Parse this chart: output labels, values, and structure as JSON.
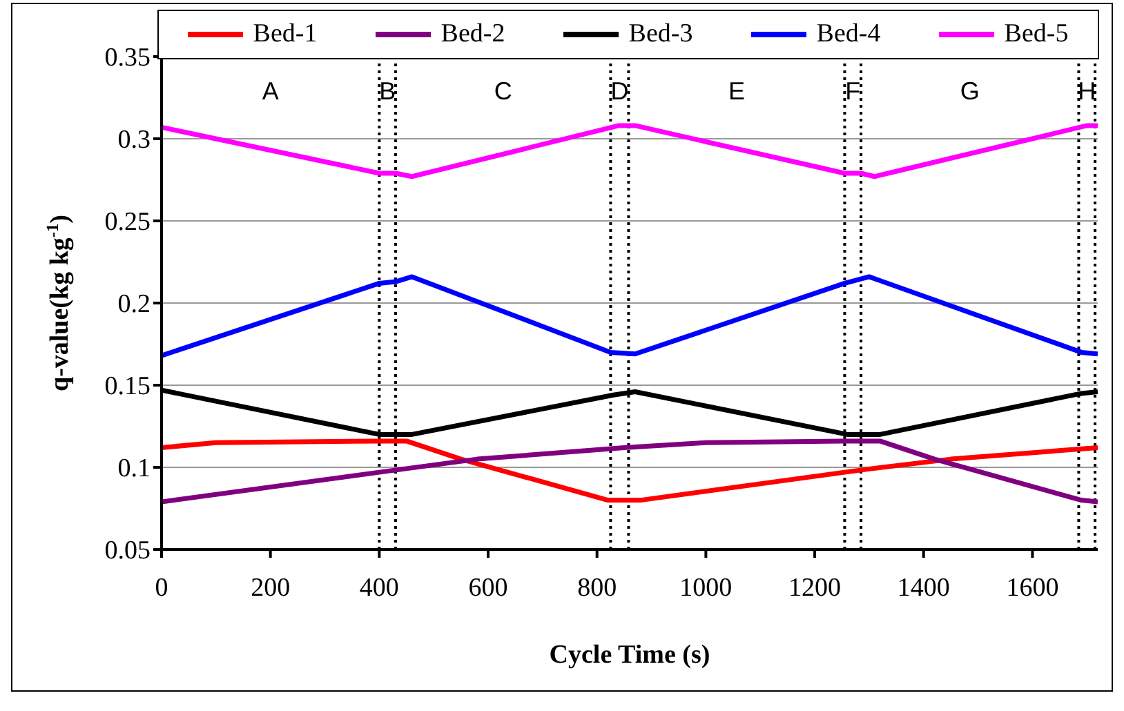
{
  "chart_data": {
    "type": "line",
    "xlabel": "Cycle Time (s)",
    "ylabel": "q-value(kg kg$^{-1}$)",
    "xlim": [
      0,
      1720
    ],
    "xticks": [
      0,
      200,
      400,
      600,
      800,
      1000,
      1200,
      1400,
      1600
    ],
    "ylim": [
      0.05,
      0.35
    ],
    "yticks": [
      0.05,
      0.1,
      0.15,
      0.2,
      0.25,
      0.3,
      0.35
    ],
    "grid": "y",
    "legend": "top",
    "marker": "none",
    "line_style": "solid",
    "series": [
      {
        "name": "Bed-1",
        "color": "#ff0000",
        "x": [
          0,
          100,
          400,
          450,
          550,
          820,
          880,
          1255,
          1300,
          1450,
          1720
        ],
        "values": [
          0.112,
          0.115,
          0.116,
          0.116,
          0.105,
          0.08,
          0.08,
          0.097,
          0.099,
          0.105,
          0.112
        ]
      },
      {
        "name": "Bed-2",
        "color": "#800080",
        "x": [
          0,
          400,
          580,
          850,
          1000,
          1250,
          1320,
          1420,
          1690,
          1720
        ],
        "values": [
          0.079,
          0.097,
          0.105,
          0.112,
          0.115,
          0.116,
          0.116,
          0.105,
          0.08,
          0.079
        ]
      },
      {
        "name": "Bed-3",
        "color": "#000000",
        "x": [
          0,
          400,
          460,
          830,
          870,
          1260,
          1320,
          1690,
          1720
        ],
        "values": [
          0.147,
          0.12,
          0.12,
          0.144,
          0.146,
          0.12,
          0.12,
          0.145,
          0.146
        ]
      },
      {
        "name": "Bed-4",
        "color": "#0000ff",
        "x": [
          0,
          400,
          430,
          460,
          825,
          870,
          1255,
          1300,
          1690,
          1720
        ],
        "values": [
          0.168,
          0.212,
          0.213,
          0.216,
          0.17,
          0.169,
          0.212,
          0.216,
          0.17,
          0.169
        ]
      },
      {
        "name": "Bed-5",
        "color": "#ff00ff",
        "x": [
          0,
          400,
          430,
          460,
          840,
          870,
          1255,
          1285,
          1310,
          1700,
          1720
        ],
        "values": [
          0.307,
          0.279,
          0.279,
          0.277,
          0.308,
          0.308,
          0.279,
          0.279,
          0.277,
          0.308,
          0.308
        ]
      }
    ],
    "ref_lines": [
      {
        "axis": "x",
        "value": 400,
        "color": "#000000",
        "line_style": "dotted"
      },
      {
        "axis": "x",
        "value": 430,
        "color": "#000000",
        "line_style": "dotted"
      },
      {
        "axis": "x",
        "value": 825,
        "color": "#000000",
        "line_style": "dotted"
      },
      {
        "axis": "x",
        "value": 858,
        "color": "#000000",
        "line_style": "dotted"
      },
      {
        "axis": "x",
        "value": 1255,
        "color": "#000000",
        "line_style": "dotted"
      },
      {
        "axis": "x",
        "value": 1285,
        "color": "#000000",
        "line_style": "dotted"
      },
      {
        "axis": "x",
        "value": 1685,
        "color": "#000000",
        "line_style": "dotted"
      },
      {
        "axis": "x",
        "value": 1715,
        "color": "#000000",
        "line_style": "dotted"
      }
    ],
    "annotations": [
      "A",
      "B",
      "C",
      "D",
      "E",
      "F",
      "G",
      "H"
    ]
  }
}
